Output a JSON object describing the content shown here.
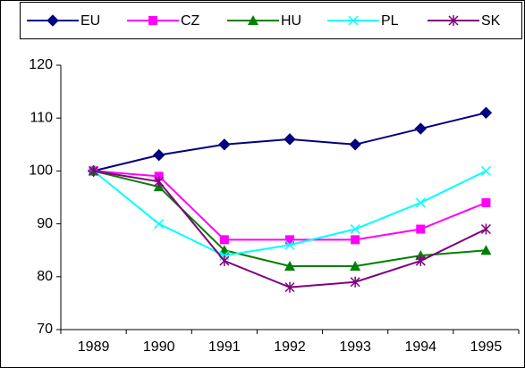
{
  "chart_data": {
    "type": "line",
    "categories": [
      "1989",
      "1990",
      "1991",
      "1992",
      "1993",
      "1994",
      "1995"
    ],
    "series": [
      {
        "name": "EU",
        "color": "#000080",
        "marker": "diamond",
        "values": [
          100,
          103,
          105,
          106,
          105,
          108,
          111
        ]
      },
      {
        "name": "CZ",
        "color": "#ff00ff",
        "marker": "square",
        "values": [
          100,
          99,
          87,
          87,
          87,
          89,
          94
        ]
      },
      {
        "name": "HU",
        "color": "#008000",
        "marker": "triangle",
        "values": [
          100,
          97,
          85,
          82,
          82,
          84,
          85
        ]
      },
      {
        "name": "PL",
        "color": "#00ffff",
        "marker": "x",
        "values": [
          100,
          90,
          84,
          86,
          89,
          94,
          100
        ]
      },
      {
        "name": "SK",
        "color": "#800080",
        "marker": "star",
        "values": [
          100,
          98,
          83,
          78,
          79,
          83,
          89
        ]
      }
    ],
    "ylim": [
      70,
      120
    ],
    "yticks": [
      70,
      80,
      90,
      100,
      110,
      120
    ],
    "grid": false,
    "legend": "top"
  }
}
